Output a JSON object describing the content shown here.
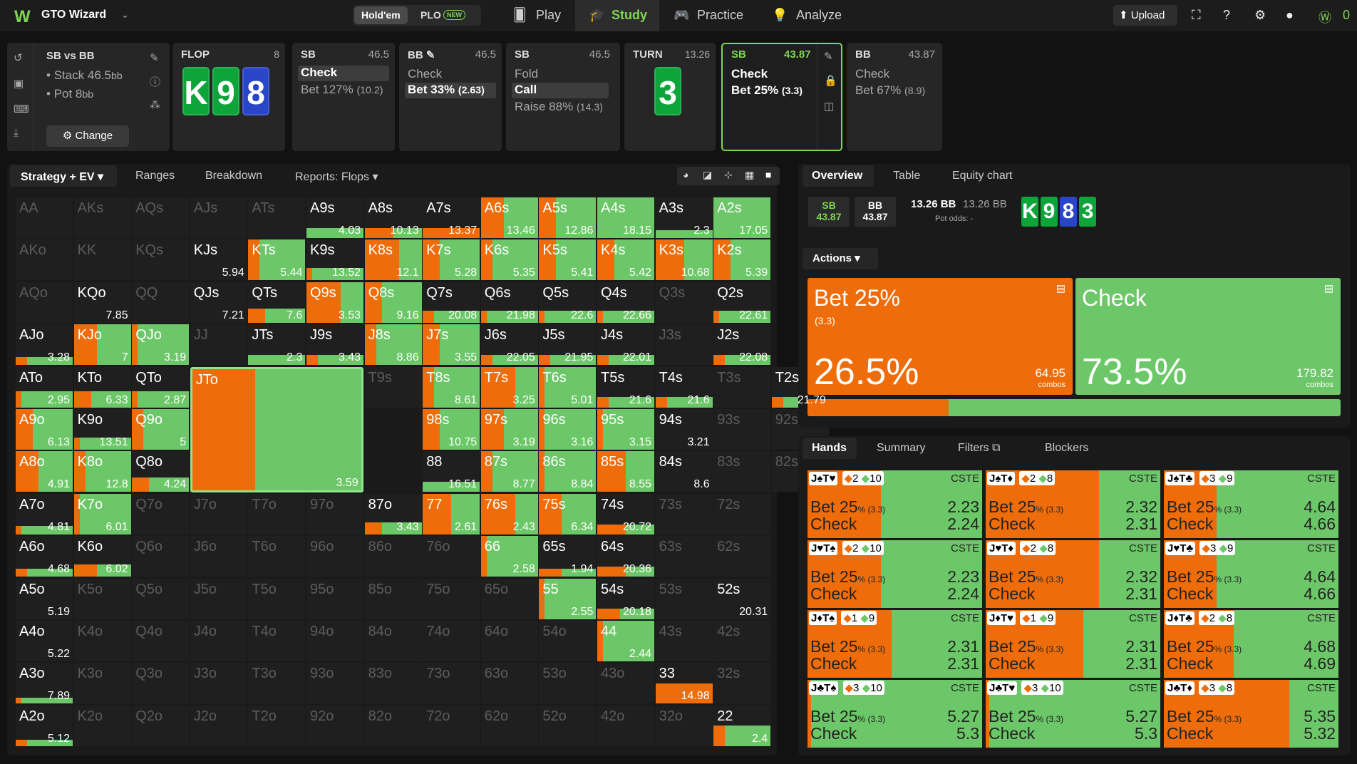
{
  "app": {
    "brand": "GTO Wizard",
    "game_tabs": [
      "Hold'em",
      "PLO"
    ],
    "new_badge": "NEW",
    "nav": [
      "Play",
      "Study",
      "Practice",
      "Analyze"
    ],
    "upload": "Upload",
    "credits": "0"
  },
  "spot": {
    "title": "SB vs BB",
    "stack": "Stack 46.5",
    "stack_unit": "bb",
    "pot": "Pot 8",
    "pot_unit": "bb",
    "change": "Change"
  },
  "street_panels": [
    {
      "name": "FLOP",
      "value": "8",
      "cards": [
        "K",
        "9",
        "8"
      ]
    },
    {
      "name": "SB",
      "value": "46.5",
      "actions": [
        "Check",
        "Bet 127%"
      ],
      "sizes": [
        "",
        "(10.2)"
      ],
      "selected": 0
    },
    {
      "name": "BB",
      "value": "46.5",
      "actions": [
        "Check",
        "Bet 33%"
      ],
      "sizes": [
        "",
        "(2.63)"
      ],
      "selected": 1
    },
    {
      "name": "SB",
      "value": "46.5",
      "actions": [
        "Fold",
        "Call",
        "Raise 88%"
      ],
      "sizes": [
        "",
        "",
        "(14.3)"
      ],
      "selected": 1
    },
    {
      "name": "TURN",
      "value": "13.26",
      "cards": [
        "3"
      ]
    },
    {
      "name": "SB",
      "value": "43.87",
      "actions": [
        "Check",
        "Bet 25%"
      ],
      "sizes": [
        "",
        "(3.3)"
      ]
    },
    {
      "name": "BB",
      "value": "43.87",
      "actions": [
        "Check",
        "Bet 67%"
      ],
      "sizes": [
        "",
        "(8.9)"
      ]
    }
  ],
  "left_tabs": [
    "Strategy + EV",
    "Ranges",
    "Breakdown",
    "Reports: Flops"
  ],
  "matrix": [
    [
      [
        "AA",
        "",
        0,
        0
      ],
      [
        "AKs",
        "",
        0,
        0
      ],
      [
        "AQs",
        "",
        0,
        0
      ],
      [
        "AJs",
        "",
        0,
        0
      ],
      [
        "ATs",
        "",
        0,
        0
      ],
      [
        "A9s",
        "4.03",
        0,
        0.25
      ],
      [
        "A8s",
        "10.13",
        0.5,
        0.25
      ],
      [
        "A7s",
        "13.37",
        1,
        0.25
      ],
      [
        "A6s",
        "13.46",
        0.4,
        1
      ],
      [
        "A5s",
        "12.86",
        0.3,
        1
      ],
      [
        "A4s",
        "18.15",
        0,
        1
      ],
      [
        "A3s",
        "2.3",
        0,
        0.2
      ],
      [
        "A2s",
        "17.05",
        0,
        1
      ]
    ],
    [
      [
        "AKo",
        "",
        0,
        0
      ],
      [
        "KK",
        "",
        0,
        0
      ],
      [
        "KQs",
        "",
        0,
        0
      ],
      [
        "KJs",
        "5.94",
        0,
        0
      ],
      [
        "KTs",
        "5.44",
        0.2,
        1
      ],
      [
        "K9s",
        "13.52",
        0.1,
        0.3
      ],
      [
        "K8s",
        "12.1",
        0.6,
        1
      ],
      [
        "K7s",
        "5.28",
        0.3,
        1
      ],
      [
        "K6s",
        "5.35",
        0.2,
        1
      ],
      [
        "K5s",
        "5.41",
        0.3,
        1
      ],
      [
        "K4s",
        "5.42",
        0.3,
        1
      ],
      [
        "K3s",
        "10.68",
        0.5,
        1
      ],
      [
        "K2s",
        "5.39",
        0.3,
        1
      ]
    ],
    [
      [
        "AQo",
        "",
        0,
        0
      ],
      [
        "KQo",
        "7.85",
        0,
        0
      ],
      [
        "QQ",
        "",
        0,
        0
      ],
      [
        "QJs",
        "7.21",
        0,
        0
      ],
      [
        "QTs",
        "7.6",
        0.3,
        0.35
      ],
      [
        "Q9s",
        "3.53",
        0.6,
        1
      ],
      [
        "Q8s",
        "9.16",
        0.3,
        1
      ],
      [
        "Q7s",
        "20.08",
        0.2,
        0.3
      ],
      [
        "Q6s",
        "21.98",
        0.1,
        0.3
      ],
      [
        "Q5s",
        "22.6",
        0.1,
        0.3
      ],
      [
        "Q4s",
        "22.66",
        0.1,
        0.3
      ],
      [
        "Q3s",
        "",
        0,
        0
      ],
      [
        "Q2s",
        "22.61",
        0.1,
        0.3
      ]
    ],
    [
      [
        "AJo",
        "3.28",
        0.2,
        0.2
      ],
      [
        "KJo",
        "7",
        0.4,
        1
      ],
      [
        "QJo",
        "3.19",
        0.1,
        1
      ],
      [
        "JJ",
        "",
        0,
        0
      ],
      [
        "JTs",
        "2.3",
        0,
        0.25
      ],
      [
        "J9s",
        "3.43",
        0.2,
        0.25
      ],
      [
        "J8s",
        "8.86",
        0.2,
        1
      ],
      [
        "J7s",
        "3.55",
        0.3,
        1
      ],
      [
        "J6s",
        "22.05",
        0.2,
        0.25
      ],
      [
        "J5s",
        "21.95",
        0.2,
        0.25
      ],
      [
        "J4s",
        "22.01",
        0.2,
        0.25
      ],
      [
        "J3s",
        "",
        0,
        0
      ],
      [
        "J2s",
        "22.08",
        0.2,
        0.25
      ]
    ],
    [
      [
        "ATo",
        "2.95",
        0.1,
        0.4
      ],
      [
        "KTo",
        "6.33",
        0.3,
        0.4
      ],
      [
        "QTo",
        "2.87",
        0.1,
        0.4
      ],
      [
        "JTo",
        "3.59",
        0,
        0
      ],
      [
        "T9s",
        "",
        0,
        0
      ],
      [
        "T8s",
        "8.61",
        0.2,
        1
      ],
      [
        "T7s",
        "3.25",
        0.6,
        1
      ],
      [
        "T6s",
        "5.01",
        0.1,
        1
      ],
      [
        "T5s",
        "21.6",
        0.2,
        0.25
      ],
      [
        "T4s",
        "21.6",
        0.2,
        0.25
      ],
      [
        "T3s",
        "",
        0,
        0
      ],
      [
        "T2s",
        "21.79",
        0.2,
        0.25
      ]
    ],
    [
      [
        "A9o",
        "6.13",
        0.3,
        1
      ],
      [
        "K9o",
        "13.51",
        0.1,
        0.3
      ],
      [
        "Q9o",
        "5",
        0.2,
        1
      ],
      [
        "",
        "",
        0,
        0
      ],
      [
        "",
        "",
        0,
        0
      ],
      [
        "98s",
        "10.75",
        0.3,
        1
      ],
      [
        "97s",
        "3.19",
        0.4,
        1
      ],
      [
        "96s",
        "3.16",
        0.1,
        1
      ],
      [
        "95s",
        "3.15",
        0.1,
        1
      ],
      [
        "94s",
        "3.21",
        0,
        0
      ],
      [
        "93s",
        "",
        0,
        0
      ],
      [
        "92s",
        "",
        0,
        0
      ]
    ],
    [
      [
        "A8o",
        "4.91",
        0.4,
        1
      ],
      [
        "K8o",
        "12.8",
        0.2,
        1
      ],
      [
        "Q8o",
        "4.24",
        0.3,
        0.35
      ],
      [
        "",
        "",
        0,
        0
      ],
      [
        "",
        "",
        0,
        0
      ],
      [
        "88",
        "16.51",
        0,
        0.25
      ],
      [
        "87s",
        "8.77",
        0.2,
        1
      ],
      [
        "86s",
        "8.84",
        0.1,
        1
      ],
      [
        "85s",
        "8.55",
        0.5,
        1
      ],
      [
        "84s",
        "8.6",
        0,
        0
      ],
      [
        "83s",
        "",
        0,
        0
      ],
      [
        "82s",
        "",
        0,
        0
      ]
    ],
    [
      [
        "A7o",
        "4.81",
        0.1,
        0.2
      ],
      [
        "K7o",
        "6.01",
        0.1,
        1
      ],
      [
        "Q7o",
        "",
        0,
        0
      ],
      [
        "J7o",
        "",
        0,
        0
      ],
      [
        "T7o",
        "",
        0,
        0
      ],
      [
        "97o",
        "",
        0,
        0
      ],
      [
        "87o",
        "3.43",
        0.3,
        0.3
      ],
      [
        "77",
        "2.61",
        0.5,
        1
      ],
      [
        "76s",
        "2.43",
        0.6,
        1
      ],
      [
        "75s",
        "6.34",
        0.4,
        1
      ],
      [
        "74s",
        "20.72",
        0.5,
        0.25
      ],
      [
        "73s",
        "",
        0,
        0
      ],
      [
        "72s",
        "",
        0,
        0
      ]
    ],
    [
      [
        "A6o",
        "4.68",
        0.2,
        0.2
      ],
      [
        "K6o",
        "6.02",
        0.4,
        0.3
      ],
      [
        "Q6o",
        "",
        0,
        0
      ],
      [
        "J6o",
        "",
        0,
        0
      ],
      [
        "T6o",
        "",
        0,
        0
      ],
      [
        "96o",
        "",
        0,
        0
      ],
      [
        "86o",
        "",
        0,
        0
      ],
      [
        "76o",
        "",
        0,
        0
      ],
      [
        "66",
        "2.58",
        0.1,
        1
      ],
      [
        "65s",
        "1.94",
        0.4,
        0.2
      ],
      [
        "64s",
        "20.36",
        0.5,
        0.25
      ],
      [
        "63s",
        "",
        0,
        0
      ],
      [
        "62s",
        "",
        0,
        0
      ]
    ],
    [
      [
        "A5o",
        "5.19",
        0,
        0
      ],
      [
        "K5o",
        "",
        0,
        0
      ],
      [
        "Q5o",
        "",
        0,
        0
      ],
      [
        "J5o",
        "",
        0,
        0
      ],
      [
        "T5o",
        "",
        0,
        0
      ],
      [
        "95o",
        "",
        0,
        0
      ],
      [
        "85o",
        "",
        0,
        0
      ],
      [
        "75o",
        "",
        0,
        0
      ],
      [
        "65o",
        "",
        0,
        0
      ],
      [
        "55",
        "2.55",
        0.1,
        1
      ],
      [
        "54s",
        "20.18",
        0.4,
        0.25
      ],
      [
        "53s",
        "",
        0,
        0
      ],
      [
        "52s",
        "20.31",
        0,
        0
      ]
    ],
    [
      [
        "A4o",
        "5.22",
        0,
        0
      ],
      [
        "K4o",
        "",
        0,
        0
      ],
      [
        "Q4o",
        "",
        0,
        0
      ],
      [
        "J4o",
        "",
        0,
        0
      ],
      [
        "T4o",
        "",
        0,
        0
      ],
      [
        "94o",
        "",
        0,
        0
      ],
      [
        "84o",
        "",
        0,
        0
      ],
      [
        "74o",
        "",
        0,
        0
      ],
      [
        "64o",
        "",
        0,
        0
      ],
      [
        "54o",
        "",
        0,
        0
      ],
      [
        "44",
        "2.44",
        0.1,
        1
      ],
      [
        "43s",
        "",
        0,
        0
      ],
      [
        "42s",
        "",
        0,
        0
      ]
    ],
    [
      [
        "A3o",
        "7.89",
        0.1,
        0.15
      ],
      [
        "K3o",
        "",
        0,
        0
      ],
      [
        "Q3o",
        "",
        0,
        0
      ],
      [
        "J3o",
        "",
        0,
        0
      ],
      [
        "T3o",
        "",
        0,
        0
      ],
      [
        "93o",
        "",
        0,
        0
      ],
      [
        "83o",
        "",
        0,
        0
      ],
      [
        "73o",
        "",
        0,
        0
      ],
      [
        "63o",
        "",
        0,
        0
      ],
      [
        "53o",
        "",
        0,
        0
      ],
      [
        "43o",
        "",
        0,
        0
      ],
      [
        "33",
        "14.98",
        1,
        0.5
      ],
      [
        "32s",
        "",
        0,
        0
      ]
    ],
    [
      [
        "A2o",
        "5.12",
        0.2,
        0.15
      ],
      [
        "K2o",
        "",
        0,
        0
      ],
      [
        "Q2o",
        "",
        0,
        0
      ],
      [
        "J2o",
        "",
        0,
        0
      ],
      [
        "T2o",
        "",
        0,
        0
      ],
      [
        "92o",
        "",
        0,
        0
      ],
      [
        "82o",
        "",
        0,
        0
      ],
      [
        "72o",
        "",
        0,
        0
      ],
      [
        "62o",
        "",
        0,
        0
      ],
      [
        "52o",
        "",
        0,
        0
      ],
      [
        "42o",
        "",
        0,
        0
      ],
      [
        "32o",
        "",
        0,
        0
      ],
      [
        "22",
        "2.4",
        0.2,
        0.5
      ]
    ]
  ],
  "right_tabs": [
    "Overview",
    "Table",
    "Equity chart"
  ],
  "overview": {
    "sb_label": "SB",
    "sb_val": "43.87",
    "bb_label": "BB",
    "bb_val": "43.87",
    "pot": "13.26 BB",
    "pot2": "13.26 BB",
    "pot_odds": "Pot odds:  -",
    "cards": [
      "K",
      "9",
      "8",
      "3"
    ]
  },
  "actions_menu": "Actions",
  "actions": [
    {
      "name": "Bet 25%",
      "size": "(3.3)",
      "pct": "26.5%",
      "combos": "64.95",
      "combos_label": "combos",
      "color": "#ee6d0a",
      "frac": 0.265
    },
    {
      "name": "Check",
      "size": "",
      "pct": "73.5%",
      "combos": "179.82",
      "combos_label": "combos",
      "color": "#6cc768",
      "frac": 0.735
    }
  ],
  "hand_tabs": [
    "Hands",
    "Summary",
    "Filters",
    "Blockers"
  ],
  "hands": [
    {
      "cards": "J♠T♥",
      "b1": "2",
      "b2": "10",
      "bet": "2.23",
      "check": "2.24",
      "frac": 0.42
    },
    {
      "cards": "J♠T♦",
      "b1": "2",
      "b2": "8",
      "bet": "2.32",
      "check": "2.31",
      "frac": 0.65
    },
    {
      "cards": "J♠T♣",
      "b1": "3",
      "b2": "9",
      "bet": "4.64",
      "check": "4.66",
      "frac": 0.3
    },
    {
      "cards": "J♥T♠",
      "b1": "2",
      "b2": "10",
      "bet": "2.23",
      "check": "2.24",
      "frac": 0.42
    },
    {
      "cards": "J♥T♦",
      "b1": "2",
      "b2": "8",
      "bet": "2.32",
      "check": "2.31",
      "frac": 0.65
    },
    {
      "cards": "J♥T♣",
      "b1": "3",
      "b2": "9",
      "bet": "4.64",
      "check": "4.66",
      "frac": 0.3
    },
    {
      "cards": "J♦T♠",
      "b1": "1",
      "b2": "9",
      "bet": "2.31",
      "check": "2.31",
      "frac": 0.48
    },
    {
      "cards": "J♦T♥",
      "b1": "1",
      "b2": "9",
      "bet": "2.31",
      "check": "2.31",
      "frac": 0.56
    },
    {
      "cards": "J♦T♣",
      "b1": "2",
      "b2": "8",
      "bet": "4.68",
      "check": "4.69",
      "frac": 0.4
    },
    {
      "cards": "J♣T♠",
      "b1": "3",
      "b2": "10",
      "bet": "5.27",
      "check": "5.3",
      "frac": 0.02
    },
    {
      "cards": "J♣T♥",
      "b1": "3",
      "b2": "10",
      "bet": "5.27",
      "check": "5.3",
      "frac": 0.02
    },
    {
      "cards": "J♣T♦",
      "b1": "3",
      "b2": "8",
      "bet": "5.35",
      "check": "5.32",
      "frac": 0.72
    }
  ],
  "hand_labels": {
    "bet": "Bet 25",
    "bet_suffix": "% (3.3)",
    "check": "Check",
    "cste": "CSTE"
  }
}
